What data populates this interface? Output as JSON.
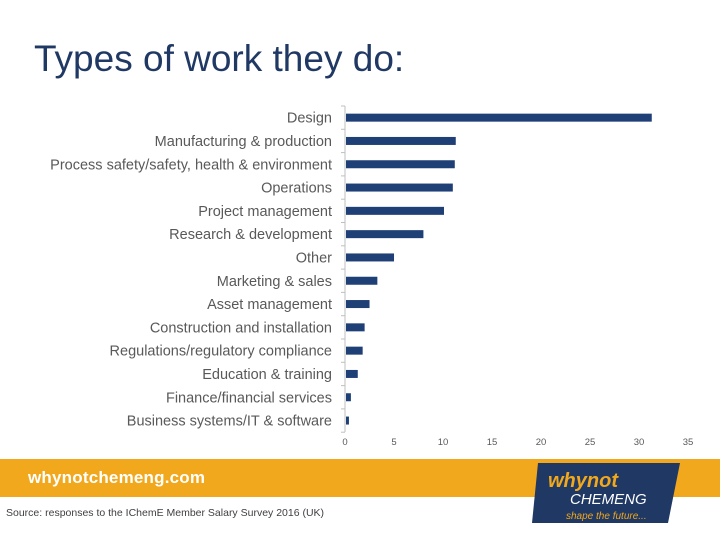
{
  "slide": {
    "title": "Types of work they do:",
    "footer_site": "whynotchemeng.com",
    "source_note": "Source: responses to the IChemE Member Salary Survey 2016 (UK)",
    "logo": {
      "top_text": "whynot",
      "middle_text": "CHEMENG",
      "tagline": "shape the future..."
    }
  },
  "colors": {
    "bar": "#1f3f77",
    "footer": "#f2a81c",
    "title": "#1f3864"
  },
  "chart_data": {
    "type": "bar",
    "orientation": "horizontal",
    "categories": [
      "Design",
      "Manufacturing & production",
      "Process safety/safety, health & environment",
      "Operations",
      "Project management",
      "Research & development",
      "Other",
      "Marketing & sales",
      "Asset management",
      "Construction and installation",
      "Regulations/regulatory compliance",
      "Education & training",
      "Finance/financial services",
      "Business systems/IT & software"
    ],
    "values": [
      31.2,
      11.2,
      11.1,
      10.9,
      10.0,
      7.9,
      4.9,
      3.2,
      2.4,
      1.9,
      1.7,
      1.2,
      0.5,
      0.3
    ],
    "xlim": [
      0,
      35
    ],
    "xticks": [
      0,
      5,
      10,
      15,
      20,
      25,
      30,
      35
    ],
    "grid": false,
    "legend": "none"
  }
}
